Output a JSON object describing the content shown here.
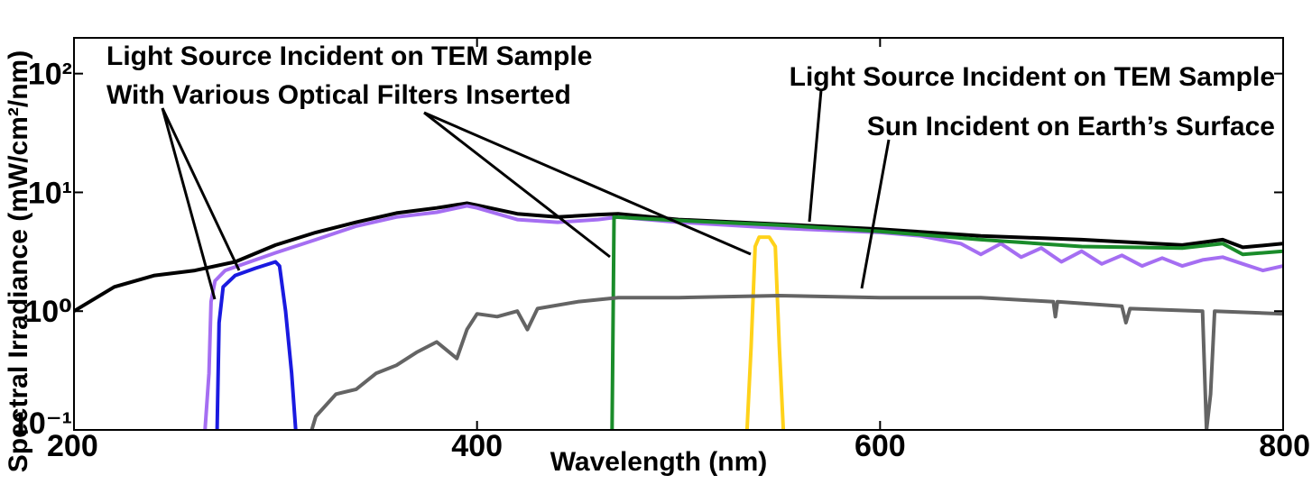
{
  "chart_data": {
    "type": "line",
    "xlabel": "Wavelength (nm)",
    "ylabel": "Spectral Irradiance (mW/cm²/nm)",
    "log_y": true,
    "grid": false,
    "xlim": [
      200,
      800
    ],
    "ylim": [
      0.1,
      200
    ],
    "xticks": [
      200,
      400,
      600,
      800
    ],
    "yticks": [
      {
        "value": 0.1,
        "label": "10⁻¹"
      },
      {
        "value": 1,
        "label": "10⁰"
      },
      {
        "value": 10,
        "label": "10¹"
      },
      {
        "value": 100,
        "label": "10²"
      }
    ],
    "annotations": [
      "Light Source Incident on TEM Sample",
      "With Various Optical Filters Inserted",
      "Light Source Incident on TEM Sample",
      "Sun Incident on Earth’s Surface"
    ],
    "series": [
      {
        "color": "#000000",
        "x": [
          200,
          220,
          240,
          260,
          280,
          300,
          320,
          340,
          360,
          380,
          395,
          400,
          420,
          440,
          460,
          470,
          500,
          550,
          600,
          650,
          700,
          750,
          770,
          780,
          800
        ],
        "values": [
          1.0,
          1.6,
          2.0,
          2.2,
          2.6,
          3.6,
          4.6,
          5.6,
          6.7,
          7.4,
          8.1,
          7.8,
          6.6,
          6.2,
          6.5,
          6.6,
          5.9,
          5.4,
          4.9,
          4.3,
          4.0,
          3.6,
          4.0,
          3.45,
          3.7
        ]
      },
      {
        "color": "#a56ef2",
        "x": [
          265,
          267,
          268,
          270,
          275,
          300,
          320,
          340,
          360,
          380,
          395,
          400,
          420,
          440,
          460,
          470,
          500,
          550,
          600,
          620,
          640,
          650,
          660,
          670,
          680,
          690,
          700,
          710,
          720,
          730,
          740,
          750,
          760,
          770,
          780,
          790,
          800
        ],
        "values": [
          0.1,
          0.3,
          1.2,
          1.8,
          2.2,
          3.1,
          4.0,
          5.2,
          6.2,
          6.8,
          7.7,
          7.4,
          5.9,
          5.6,
          5.9,
          6.2,
          5.6,
          5.0,
          4.6,
          4.3,
          3.7,
          3.0,
          3.7,
          2.85,
          3.4,
          2.6,
          3.2,
          2.5,
          2.95,
          2.4,
          2.8,
          2.4,
          2.7,
          2.85,
          2.5,
          2.2,
          2.4
        ]
      },
      {
        "color": "#1a1ae0",
        "x": [
          271,
          272,
          274,
          280,
          290,
          300,
          302,
          305,
          308,
          310
        ],
        "values": [
          0.1,
          0.8,
          1.6,
          2.0,
          2.3,
          2.6,
          2.4,
          1.0,
          0.3,
          0.1
        ]
      },
      {
        "color": "#1a8c2a",
        "x": [
          467,
          468,
          500,
          550,
          600,
          650,
          700,
          750,
          770,
          780,
          800
        ],
        "values": [
          0.1,
          6.2,
          5.8,
          5.3,
          4.7,
          4.0,
          3.5,
          3.4,
          3.7,
          3.0,
          3.2
        ]
      },
      {
        "color": "#ffd21a",
        "x": [
          534,
          536,
          538,
          540,
          545,
          548,
          550,
          552
        ],
        "values": [
          0.1,
          0.5,
          3.5,
          4.2,
          4.2,
          3.5,
          0.5,
          0.1
        ]
      },
      {
        "color": "#646464",
        "x": [
          318,
          320,
          330,
          340,
          350,
          360,
          370,
          380,
          390,
          395,
          400,
          410,
          420,
          425,
          430,
          450,
          470,
          500,
          550,
          600,
          650,
          686,
          687,
          688,
          720,
          722,
          724,
          760,
          762,
          764,
          766,
          800
        ],
        "values": [
          0.1,
          0.13,
          0.2,
          0.22,
          0.3,
          0.35,
          0.45,
          0.55,
          0.4,
          0.7,
          0.95,
          0.9,
          1.0,
          0.7,
          1.05,
          1.2,
          1.3,
          1.3,
          1.35,
          1.3,
          1.3,
          1.2,
          0.9,
          1.2,
          1.1,
          0.8,
          1.05,
          1.0,
          0.1,
          0.2,
          1.0,
          0.95
        ]
      }
    ]
  }
}
